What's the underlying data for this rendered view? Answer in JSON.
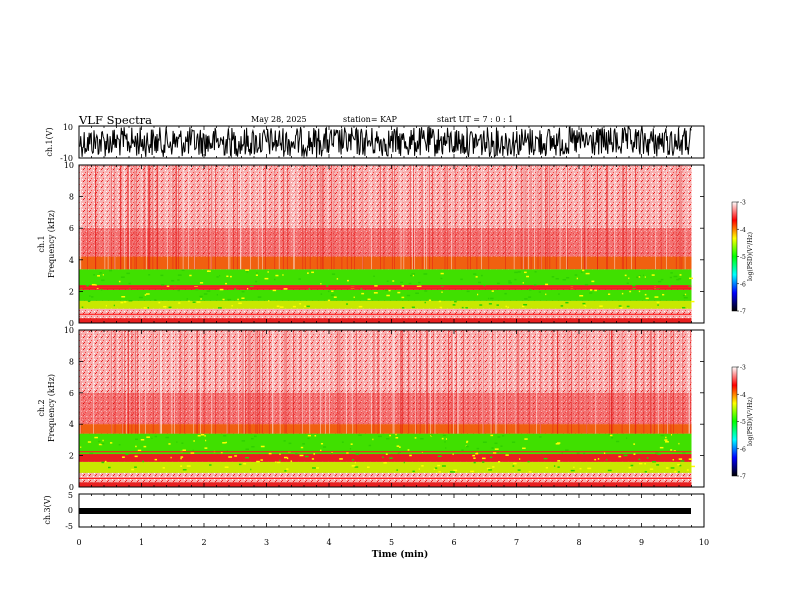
{
  "header": {
    "title": "VLF Spectra",
    "date": "May 28, 2025",
    "station": "station= KAP",
    "start": "start  UT  =   7 : 0  : 1"
  },
  "colorbar": {
    "label": "log(PSD)(V²/Hz)",
    "ticks": [
      "-3",
      "-4",
      "-5",
      "-6",
      "-7"
    ],
    "colors": [
      "#ffffff",
      "#ff0000",
      "#ffff00",
      "#00ff00",
      "#00ffff",
      "#0000ff",
      "#000000"
    ]
  },
  "chart_data": [
    {
      "type": "line",
      "name": "ch1-waveform",
      "ylabel": "ch.1(V)",
      "ylim": [
        -10,
        10
      ],
      "yticks": [
        "10",
        "-10"
      ],
      "description_values": "noise-like waveform filling roughly ±8 V"
    },
    {
      "type": "heatmap",
      "name": "ch1-spectrogram",
      "ylabel_top": "ch.1",
      "ylabel": "Frequency  (kHz)",
      "ylim": [
        0,
        10
      ],
      "yticks": [
        "0",
        "2",
        "4",
        "6",
        "8",
        "10"
      ],
      "xlim": [
        0,
        10
      ],
      "bands_khz": [
        {
          "from": 0.0,
          "to": 0.3,
          "level": "red"
        },
        {
          "from": 0.9,
          "to": 1.4,
          "level": "yellow-green"
        },
        {
          "from": 1.4,
          "to": 2.1,
          "level": "green"
        },
        {
          "from": 2.1,
          "to": 2.4,
          "level": "red"
        },
        {
          "from": 2.4,
          "to": 3.4,
          "level": "green"
        },
        {
          "from": 3.4,
          "to": 4.2,
          "level": "red-yellow"
        },
        {
          "from": 4.2,
          "to": 10.0,
          "level": "light-red"
        }
      ]
    },
    {
      "type": "heatmap",
      "name": "ch2-spectrogram",
      "ylabel_top": "ch.2",
      "ylabel": "Frequency  (kHz)",
      "ylim": [
        0,
        10
      ],
      "yticks": [
        "0",
        "2",
        "4",
        "6",
        "8",
        "10"
      ],
      "xlim": [
        0,
        10
      ],
      "bands_khz": [
        {
          "from": 0.0,
          "to": 0.3,
          "level": "red"
        },
        {
          "from": 0.9,
          "to": 1.6,
          "level": "yellow-green"
        },
        {
          "from": 1.6,
          "to": 2.1,
          "level": "red"
        },
        {
          "from": 2.1,
          "to": 3.4,
          "level": "green"
        },
        {
          "from": 3.4,
          "to": 4.0,
          "level": "red-yellow"
        },
        {
          "from": 4.0,
          "to": 10.0,
          "level": "light-red"
        }
      ]
    },
    {
      "type": "line",
      "name": "ch3-waveform",
      "ylabel": "ch.3(V)",
      "ylim": [
        -5,
        5
      ],
      "yticks": [
        "5",
        "0",
        "-5"
      ],
      "description_values": "flat signal near -0.2 V with ~0.5 V thickness"
    }
  ],
  "xaxis": {
    "label": "Time  (min)",
    "xlim": [
      0,
      10
    ],
    "ticks": [
      "0",
      "1",
      "2",
      "3",
      "4",
      "5",
      "6",
      "7",
      "8",
      "9",
      "10"
    ],
    "data_end": 9.8
  }
}
